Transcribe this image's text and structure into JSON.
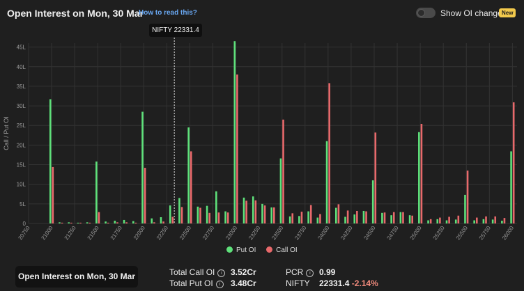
{
  "header": {
    "title": "Open Interest on Mon, 30 Mar",
    "how_to_link": "How to read this?",
    "toggle_label": "Show OI change",
    "new_badge": "New",
    "toggle_on": false
  },
  "tooltip": {
    "text": "NIFTY 22331.4"
  },
  "colors": {
    "put": "#5ee07a",
    "call": "#e8696b",
    "background": "#1f1f1f",
    "grid": "#333333"
  },
  "legend": {
    "put_label": "Put OI",
    "call_label": "Call OI"
  },
  "footer": {
    "card_title": "Open Interest on Mon, 30 Mar",
    "total_call_label": "Total Call OI",
    "total_call_value": "3.52Cr",
    "total_put_label": "Total Put OI",
    "total_put_value": "3.48Cr",
    "pcr_label": "PCR",
    "pcr_value": "0.99",
    "nifty_label": "NIFTY",
    "nifty_value": "22331.4",
    "nifty_change": "-2.14%"
  },
  "chart_data": {
    "type": "bar",
    "ylabel": "Call / Put OI",
    "ylim": [
      0,
      46
    ],
    "y_ticks": [
      "0",
      "5L",
      "10L",
      "15L",
      "20L",
      "25L",
      "30L",
      "35L",
      "40L",
      "45L"
    ],
    "x_ticks": [
      "20750",
      "21000",
      "21250",
      "21500",
      "21750",
      "22000",
      "22250",
      "22500",
      "22750",
      "23000",
      "23250",
      "23500",
      "23750",
      "24000",
      "24250",
      "24500",
      "24750",
      "25000",
      "25250",
      "25500",
      "25750",
      "26000"
    ],
    "spot_marker": 22331.4,
    "strikes": [
      21000,
      21100,
      21200,
      21300,
      21400,
      21500,
      21600,
      21700,
      21800,
      21900,
      22000,
      22100,
      22200,
      22300,
      22400,
      22500,
      22600,
      22700,
      22800,
      22900,
      23000,
      23100,
      23200,
      23300,
      23400,
      23500,
      23600,
      23700,
      23800,
      23900,
      24000,
      24100,
      24200,
      24300,
      24400,
      24500,
      24600,
      24700,
      24800,
      24900,
      25000,
      25100,
      25200,
      25300,
      25400,
      25500,
      25600,
      25700,
      25800,
      25900,
      26000
    ],
    "series": [
      {
        "name": "Put OI",
        "values": [
          31.7,
          0.3,
          0.3,
          0.2,
          0.3,
          15.8,
          0.5,
          0.7,
          0.9,
          0.6,
          28.5,
          1.3,
          1.6,
          4.6,
          6.5,
          24.5,
          4.3,
          4.5,
          8.2,
          3.1,
          46.5,
          6.6,
          6.9,
          5.0,
          4.1,
          16.6,
          1.8,
          1.9,
          3.1,
          1.5,
          21.0,
          4.0,
          1.7,
          2.3,
          3.2,
          11.0,
          2.7,
          2.1,
          2.9,
          2.1,
          23.3,
          0.8,
          1.1,
          0.8,
          1.0,
          7.3,
          0.8,
          1.1,
          1.0,
          0.7,
          18.4
        ]
      },
      {
        "name": "Call OI",
        "values": [
          14.4,
          0.2,
          0.2,
          0.2,
          0.2,
          2.9,
          0.2,
          0.3,
          0.3,
          0.2,
          14.2,
          0.3,
          0.5,
          1.7,
          4.2,
          18.4,
          4.0,
          2.7,
          2.8,
          2.8,
          38.0,
          5.8,
          5.9,
          4.6,
          4.1,
          26.5,
          2.6,
          3.0,
          4.7,
          2.4,
          35.8,
          4.9,
          3.3,
          3.2,
          3.1,
          23.2,
          2.8,
          2.9,
          2.9,
          2.0,
          25.4,
          1.1,
          1.5,
          1.7,
          2.0,
          13.5,
          1.5,
          1.8,
          1.8,
          1.4,
          30.9
        ]
      }
    ]
  }
}
